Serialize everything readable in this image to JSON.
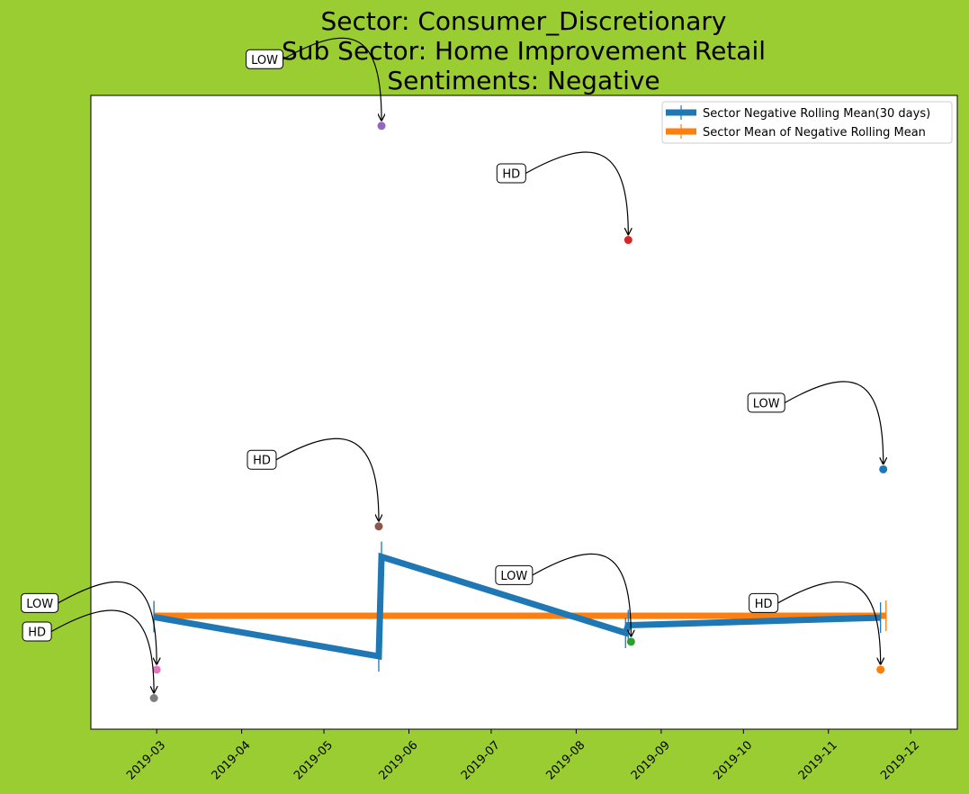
{
  "chart_data": {
    "type": "line",
    "title_lines": [
      "Sector:  Consumer_Discretionary",
      "Sub Sector:  Home Improvement Retail",
      "Sentiments:  Negative"
    ],
    "xlabel": "",
    "ylabel": "",
    "x_axis": {
      "type": "date",
      "min": "2019-02-05",
      "max": "2019-12-18"
    },
    "x_tick_labels": [
      "2019-03",
      "2019-04",
      "2019-05",
      "2019-06",
      "2019-07",
      "2019-08",
      "2019-09",
      "2019-10",
      "2019-11",
      "2019-12"
    ],
    "y_range": [
      0,
      1000
    ],
    "y_ticks_shown": false,
    "grid": false,
    "legend_placement": "top-right",
    "series": [
      {
        "name": "Sector Negative Rolling Mean(30 days)",
        "color": "#1f77b4",
        "points": [
          {
            "x": "2019-02-28",
            "y": 177
          },
          {
            "x": "2019-05-21",
            "y": 115
          },
          {
            "x": "2019-05-22",
            "y": 272
          },
          {
            "x": "2019-08-19",
            "y": 152
          },
          {
            "x": "2019-08-20",
            "y": 164
          },
          {
            "x": "2019-11-20",
            "y": 176
          }
        ]
      },
      {
        "name": "Sector Mean of Negative Rolling Mean",
        "color": "#ff7f0e",
        "points": [
          {
            "x": "2019-02-28",
            "y": 179
          },
          {
            "x": "2019-11-22",
            "y": 179
          }
        ]
      }
    ],
    "annotated_points": [
      {
        "label": "LOW",
        "x": "2019-05-22",
        "y": 952,
        "color": "#9467bd"
      },
      {
        "label": "HD",
        "x": "2019-08-20",
        "y": 772,
        "color": "#d62728"
      },
      {
        "label": "LOW",
        "x": "2019-11-21",
        "y": 410,
        "color": "#1f77b4"
      },
      {
        "label": "HD",
        "x": "2019-05-21",
        "y": 320,
        "color": "#8c564b"
      },
      {
        "label": "LOW",
        "x": "2019-08-21",
        "y": 138,
        "color": "#2ca02c"
      },
      {
        "label": "HD",
        "x": "2019-11-20",
        "y": 94,
        "color": "#ff7f0e"
      },
      {
        "label": "LOW",
        "x": "2019-03-01",
        "y": 94,
        "color": "#e377c2"
      },
      {
        "label": "HD",
        "x": "2019-02-28",
        "y": 49,
        "color": "#7f7f7f"
      }
    ]
  }
}
